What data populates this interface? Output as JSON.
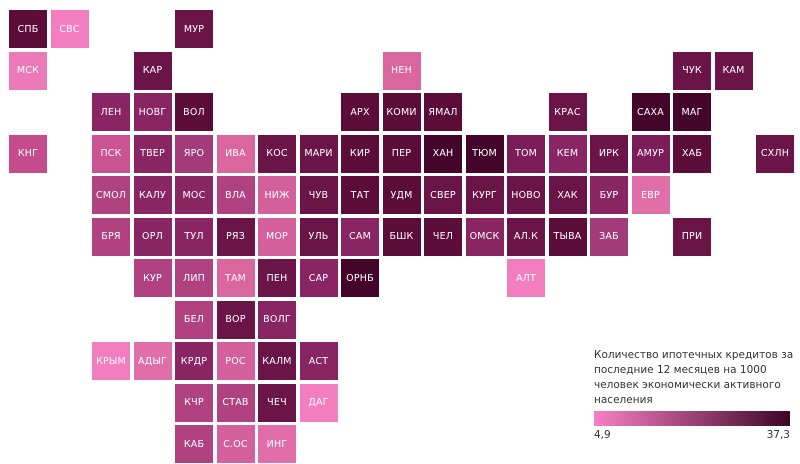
{
  "regions": [
    {
      "label": "СПБ",
      "col": 0,
      "row": 0,
      "color": "#5c0c39"
    },
    {
      "label": "СВС",
      "col": 1,
      "row": 0,
      "color": "#f27ec0"
    },
    {
      "label": "МУР",
      "col": 4,
      "row": 0,
      "color": "#6a1447"
    },
    {
      "label": "МСК",
      "col": 0,
      "row": 1,
      "color": "#ec7ab8"
    },
    {
      "label": "КАР",
      "col": 3,
      "row": 1,
      "color": "#6a1447"
    },
    {
      "label": "НЕН",
      "col": 9,
      "row": 1,
      "color": "#d9669f"
    },
    {
      "label": "ЧУК",
      "col": 16,
      "row": 1,
      "color": "#6a1447"
    },
    {
      "label": "КАМ",
      "col": 17,
      "row": 1,
      "color": "#6a1447"
    },
    {
      "label": "ЛЕН",
      "col": 2,
      "row": 2,
      "color": "#8a2563"
    },
    {
      "label": "НОВГ",
      "col": 3,
      "row": 2,
      "color": "#8a2563"
    },
    {
      "label": "ВОЛ",
      "col": 4,
      "row": 2,
      "color": "#5c0c39"
    },
    {
      "label": "АРХ",
      "col": 8,
      "row": 2,
      "color": "#5c0c39"
    },
    {
      "label": "КОМИ",
      "col": 9,
      "row": 2,
      "color": "#5c0c39"
    },
    {
      "label": "ЯМАЛ",
      "col": 10,
      "row": 2,
      "color": "#5c0c39"
    },
    {
      "label": "КРАС",
      "col": 13,
      "row": 2,
      "color": "#6a1447"
    },
    {
      "label": "САХА",
      "col": 15,
      "row": 2,
      "color": "#44052b"
    },
    {
      "label": "МАГ",
      "col": 16,
      "row": 2,
      "color": "#44052b"
    },
    {
      "label": "КНГ",
      "col": 0,
      "row": 3,
      "color": "#c54b8d"
    },
    {
      "label": "ПСК",
      "col": 2,
      "row": 3,
      "color": "#ca5393"
    },
    {
      "label": "ТВЕР",
      "col": 3,
      "row": 3,
      "color": "#8a2563"
    },
    {
      "label": "ЯРО",
      "col": 4,
      "row": 3,
      "color": "#a33a7a"
    },
    {
      "label": "ИВА",
      "col": 5,
      "row": 3,
      "color": "#d9669f"
    },
    {
      "label": "КОС",
      "col": 6,
      "row": 3,
      "color": "#6a1447"
    },
    {
      "label": "МАРИ",
      "col": 7,
      "row": 3,
      "color": "#6a1447"
    },
    {
      "label": "КИР",
      "col": 8,
      "row": 3,
      "color": "#5c0c39"
    },
    {
      "label": "ПЕР",
      "col": 9,
      "row": 3,
      "color": "#5c0c39"
    },
    {
      "label": "ХАН",
      "col": 10,
      "row": 3,
      "color": "#44052b"
    },
    {
      "label": "ТЮМ",
      "col": 11,
      "row": 3,
      "color": "#44052b"
    },
    {
      "label": "ТОМ",
      "col": 12,
      "row": 3,
      "color": "#7c1c58"
    },
    {
      "label": "КЕМ",
      "col": 13,
      "row": 3,
      "color": "#8a2563"
    },
    {
      "label": "ИРК",
      "col": 14,
      "row": 3,
      "color": "#6a1447"
    },
    {
      "label": "АМУР",
      "col": 15,
      "row": 3,
      "color": "#7c1c58"
    },
    {
      "label": "ХАБ",
      "col": 16,
      "row": 3,
      "color": "#5c0c39"
    },
    {
      "label": "СХЛН",
      "col": 18,
      "row": 3,
      "color": "#6a1447"
    },
    {
      "label": "СМОЛ",
      "col": 2,
      "row": 4,
      "color": "#b04282"
    },
    {
      "label": "КАЛУ",
      "col": 3,
      "row": 4,
      "color": "#8a2563"
    },
    {
      "label": "МОС",
      "col": 4,
      "row": 4,
      "color": "#8a2563"
    },
    {
      "label": "ВЛА",
      "col": 5,
      "row": 4,
      "color": "#b04282"
    },
    {
      "label": "НИЖ",
      "col": 6,
      "row": 4,
      "color": "#d3609a"
    },
    {
      "label": "ЧУВ",
      "col": 7,
      "row": 4,
      "color": "#6a1447"
    },
    {
      "label": "ТАТ",
      "col": 8,
      "row": 4,
      "color": "#5c0c39"
    },
    {
      "label": "УДМ",
      "col": 9,
      "row": 4,
      "color": "#5c0c39"
    },
    {
      "label": "СВЕР",
      "col": 10,
      "row": 4,
      "color": "#6a1447"
    },
    {
      "label": "КУРГ",
      "col": 11,
      "row": 4,
      "color": "#6a1447"
    },
    {
      "label": "НОВО",
      "col": 12,
      "row": 4,
      "color": "#6a1447"
    },
    {
      "label": "ХАК",
      "col": 13,
      "row": 4,
      "color": "#6a1447"
    },
    {
      "label": "БУР",
      "col": 14,
      "row": 4,
      "color": "#8a2563"
    },
    {
      "label": "ЕВР",
      "col": 15,
      "row": 4,
      "color": "#e06ea8"
    },
    {
      "label": "БРЯ",
      "col": 2,
      "row": 5,
      "color": "#b04282"
    },
    {
      "label": "ОРЛ",
      "col": 3,
      "row": 5,
      "color": "#8a2563"
    },
    {
      "label": "ТУЛ",
      "col": 4,
      "row": 5,
      "color": "#8a2563"
    },
    {
      "label": "РЯЗ",
      "col": 5,
      "row": 5,
      "color": "#6a1447"
    },
    {
      "label": "МОР",
      "col": 6,
      "row": 5,
      "color": "#d3609a"
    },
    {
      "label": "УЛЬ",
      "col": 7,
      "row": 5,
      "color": "#6a1447"
    },
    {
      "label": "САМ",
      "col": 8,
      "row": 5,
      "color": "#8a2563"
    },
    {
      "label": "БШК",
      "col": 9,
      "row": 5,
      "color": "#5c0c39"
    },
    {
      "label": "ЧЕЛ",
      "col": 10,
      "row": 5,
      "color": "#5c0c39"
    },
    {
      "label": "ОМСК",
      "col": 11,
      "row": 5,
      "color": "#8a2563"
    },
    {
      "label": "АЛ.К",
      "col": 12,
      "row": 5,
      "color": "#6a1447"
    },
    {
      "label": "ТЫВА",
      "col": 13,
      "row": 5,
      "color": "#5c0c39"
    },
    {
      "label": "ЗАБ",
      "col": 14,
      "row": 5,
      "color": "#a33a7a"
    },
    {
      "label": "ПРИ",
      "col": 16,
      "row": 5,
      "color": "#6a1447"
    },
    {
      "label": "КУР",
      "col": 3,
      "row": 6,
      "color": "#b04282"
    },
    {
      "label": "ЛИП",
      "col": 4,
      "row": 6,
      "color": "#b04282"
    },
    {
      "label": "ТАМ",
      "col": 5,
      "row": 6,
      "color": "#d9669f"
    },
    {
      "label": "ПЕН",
      "col": 6,
      "row": 6,
      "color": "#6a1447"
    },
    {
      "label": "САР",
      "col": 7,
      "row": 6,
      "color": "#8a2563"
    },
    {
      "label": "ОРНБ",
      "col": 8,
      "row": 6,
      "color": "#44052b"
    },
    {
      "label": "АЛТ",
      "col": 12,
      "row": 6,
      "color": "#f27ec0"
    },
    {
      "label": "БЕЛ",
      "col": 4,
      "row": 7,
      "color": "#b04282"
    },
    {
      "label": "ВОР",
      "col": 5,
      "row": 7,
      "color": "#6a1447"
    },
    {
      "label": "ВОЛГ",
      "col": 6,
      "row": 7,
      "color": "#8a2563"
    },
    {
      "label": "КРЫМ",
      "col": 2,
      "row": 8,
      "color": "#f27ec0"
    },
    {
      "label": "АДЫГ",
      "col": 3,
      "row": 8,
      "color": "#e06ea8"
    },
    {
      "label": "КРДР",
      "col": 4,
      "row": 8,
      "color": "#8a2563"
    },
    {
      "label": "РОС",
      "col": 5,
      "row": 8,
      "color": "#d3609a"
    },
    {
      "label": "КАЛМ",
      "col": 6,
      "row": 8,
      "color": "#6a1447"
    },
    {
      "label": "АСТ",
      "col": 7,
      "row": 8,
      "color": "#8a2563"
    },
    {
      "label": "КЧР",
      "col": 4,
      "row": 9,
      "color": "#b04282"
    },
    {
      "label": "СТАВ",
      "col": 5,
      "row": 9,
      "color": "#b04282"
    },
    {
      "label": "ЧЕЧ",
      "col": 6,
      "row": 9,
      "color": "#6a1447"
    },
    {
      "label": "ДАГ",
      "col": 7,
      "row": 9,
      "color": "#f27ec0"
    },
    {
      "label": "КАБ",
      "col": 4,
      "row": 10,
      "color": "#b04282"
    },
    {
      "label": "С.ОС",
      "col": 5,
      "row": 10,
      "color": "#d3609a"
    },
    {
      "label": "ИНГ",
      "col": 6,
      "row": 10,
      "color": "#e06ea8"
    }
  ],
  "legend": {
    "title": "Количество ипотечных кредитов за последние 12 месяцев на 1000 человек экономически активного населения",
    "min_label": "4,9",
    "max_label": "37,3",
    "min": 4.9,
    "max": 37.3,
    "color_low": "#f77fc3",
    "color_high": "#3e0627"
  }
}
